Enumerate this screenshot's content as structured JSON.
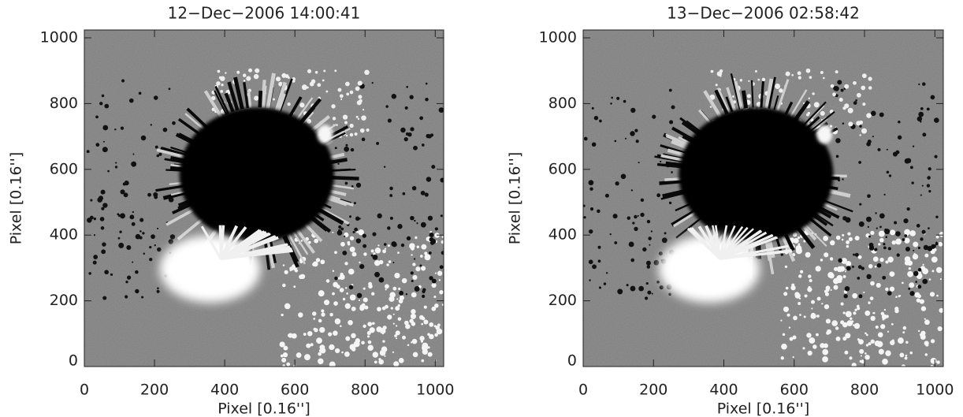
{
  "chart_data": [
    {
      "type": "image",
      "title": "12−Dec−2006 14:00:41",
      "xlabel": "Pixel [0.16'']",
      "ylabel": "Pixel [0.16'']",
      "xlim": [
        0,
        1024
      ],
      "ylim": [
        0,
        1024
      ],
      "xticks": [
        0,
        200,
        400,
        600,
        800,
        1000
      ],
      "yticks": [
        0,
        200,
        400,
        600,
        800,
        1000
      ]
    },
    {
      "type": "image",
      "title": "13−Dec−2006 02:58:42",
      "xlabel": "Pixel [0.16'']",
      "ylabel": "Pixel [0.16'']",
      "xlim": [
        0,
        1024
      ],
      "ylim": [
        0,
        1024
      ],
      "xticks": [
        0,
        200,
        400,
        600,
        800,
        1000
      ],
      "yticks": [
        0,
        200,
        400,
        600,
        800,
        1000
      ]
    }
  ]
}
